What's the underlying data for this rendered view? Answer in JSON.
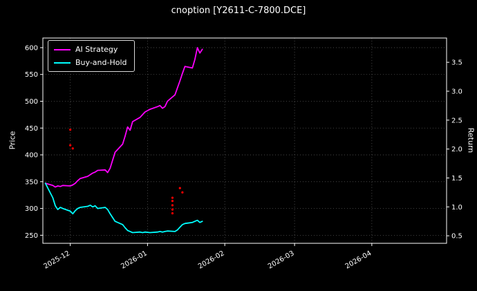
{
  "window": {
    "title": "cnoption [Y2611-C-7800.DCE]"
  },
  "chart_data": {
    "type": "line",
    "title": "cnoption [Y2611-C-7800.DCE]",
    "ylabel_left": "Price",
    "ylabel_right": "Return",
    "background_color": "#000000",
    "text_color": "#ffffff",
    "grid_color": "#555555",
    "spine_color": "#ffffff",
    "grid": "on",
    "legend_position": "upper-left",
    "xlim": [
      "2025-11-20",
      "2026-05-01"
    ],
    "ylim_left": [
      235,
      618
    ],
    "ylim_right": [
      0.37,
      3.92
    ],
    "yticks_left": [
      "250",
      "300",
      "350",
      "400",
      "450",
      "500",
      "550",
      "600"
    ],
    "yticks_left_values": [
      250,
      300,
      350,
      400,
      450,
      500,
      550,
      600
    ],
    "yticks_right": [
      "0.5",
      "1.0",
      "1.5",
      "2.0",
      "2.5",
      "3.0",
      "3.5"
    ],
    "yticks_right_values": [
      0.5,
      1.0,
      1.5,
      2.0,
      2.5,
      3.0,
      3.5
    ],
    "xticks": [
      {
        "date": "2025-12-01",
        "label": "2025-12"
      },
      {
        "date": "2026-01-01",
        "label": "2026-01"
      },
      {
        "date": "2026-02-01",
        "label": "2026-02"
      },
      {
        "date": "2026-03-01",
        "label": "2026-03"
      },
      {
        "date": "2026-04-01",
        "label": "2026-04"
      }
    ],
    "series": [
      {
        "name": "AI Strategy",
        "color": "#ff00ff",
        "points": [
          [
            "2025-11-21",
            347
          ],
          [
            "2025-11-24",
            343
          ],
          [
            "2025-11-25",
            340
          ],
          [
            "2025-11-26",
            342
          ],
          [
            "2025-11-27",
            341
          ],
          [
            "2025-11-28",
            343
          ],
          [
            "2025-12-01",
            342
          ],
          [
            "2025-12-02",
            344
          ],
          [
            "2025-12-03",
            347
          ],
          [
            "2025-12-04",
            352
          ],
          [
            "2025-12-05",
            356
          ],
          [
            "2025-12-08",
            360
          ],
          [
            "2025-12-09",
            363
          ],
          [
            "2025-12-10",
            366
          ],
          [
            "2025-12-11",
            368
          ],
          [
            "2025-12-12",
            371
          ],
          [
            "2025-12-15",
            372
          ],
          [
            "2025-12-16",
            367
          ],
          [
            "2025-12-17",
            375
          ],
          [
            "2025-12-18",
            390
          ],
          [
            "2025-12-19",
            405
          ],
          [
            "2025-12-22",
            420
          ],
          [
            "2025-12-23",
            435
          ],
          [
            "2025-12-24",
            452
          ],
          [
            "2025-12-25",
            446
          ],
          [
            "2025-12-26",
            462
          ],
          [
            "2025-12-29",
            470
          ],
          [
            "2025-12-30",
            475
          ],
          [
            "2025-12-31",
            480
          ],
          [
            "2026-01-02",
            485
          ],
          [
            "2026-01-05",
            490
          ],
          [
            "2026-01-06",
            492
          ],
          [
            "2026-01-07",
            487
          ],
          [
            "2026-01-08",
            490
          ],
          [
            "2026-01-09",
            500
          ],
          [
            "2026-01-12",
            512
          ],
          [
            "2026-01-13",
            525
          ],
          [
            "2026-01-14",
            538
          ],
          [
            "2026-01-15",
            552
          ],
          [
            "2026-01-16",
            565
          ],
          [
            "2026-01-19",
            562
          ],
          [
            "2026-01-20",
            578
          ],
          [
            "2026-01-21",
            600
          ],
          [
            "2026-01-22",
            590
          ],
          [
            "2026-01-23",
            597
          ]
        ]
      },
      {
        "name": "Buy-and-Hold",
        "color": "#00ffff",
        "points": [
          [
            "2025-11-21",
            347
          ],
          [
            "2025-11-24",
            320
          ],
          [
            "2025-11-25",
            305
          ],
          [
            "2025-11-26",
            298
          ],
          [
            "2025-11-27",
            302
          ],
          [
            "2025-11-28",
            300
          ],
          [
            "2025-12-01",
            295
          ],
          [
            "2025-12-02",
            290
          ],
          [
            "2025-12-03",
            296
          ],
          [
            "2025-12-04",
            300
          ],
          [
            "2025-12-05",
            302
          ],
          [
            "2025-12-08",
            304
          ],
          [
            "2025-12-09",
            306
          ],
          [
            "2025-12-10",
            303
          ],
          [
            "2025-12-11",
            305
          ],
          [
            "2025-12-12",
            300
          ],
          [
            "2025-12-15",
            302
          ],
          [
            "2025-12-16",
            298
          ],
          [
            "2025-12-17",
            290
          ],
          [
            "2025-12-18",
            283
          ],
          [
            "2025-12-19",
            276
          ],
          [
            "2025-12-22",
            270
          ],
          [
            "2025-12-23",
            264
          ],
          [
            "2025-12-24",
            259
          ],
          [
            "2025-12-25",
            257
          ],
          [
            "2025-12-26",
            255
          ],
          [
            "2025-12-29",
            256
          ],
          [
            "2025-12-30",
            255
          ],
          [
            "2025-12-31",
            256
          ],
          [
            "2026-01-02",
            255
          ],
          [
            "2026-01-05",
            256
          ],
          [
            "2026-01-06",
            257
          ],
          [
            "2026-01-07",
            256
          ],
          [
            "2026-01-08",
            257
          ],
          [
            "2026-01-09",
            258
          ],
          [
            "2026-01-12",
            257
          ],
          [
            "2026-01-13",
            260
          ],
          [
            "2026-01-14",
            265
          ],
          [
            "2026-01-15",
            270
          ],
          [
            "2026-01-16",
            272
          ],
          [
            "2026-01-19",
            274
          ],
          [
            "2026-01-20",
            276
          ],
          [
            "2026-01-21",
            278
          ],
          [
            "2026-01-22",
            274
          ],
          [
            "2026-01-23",
            276
          ]
        ]
      }
    ],
    "markers": {
      "name": "trade-signals",
      "color": "#ff0000",
      "points": [
        [
          "2025-12-01",
          447
        ],
        [
          "2025-12-01",
          418
        ],
        [
          "2025-12-02",
          412
        ],
        [
          "2026-01-11",
          291
        ],
        [
          "2026-01-11",
          298
        ],
        [
          "2026-01-11",
          306
        ],
        [
          "2026-01-11",
          314
        ],
        [
          "2026-01-11",
          320
        ],
        [
          "2026-01-14",
          338
        ],
        [
          "2026-01-15",
          330
        ]
      ]
    }
  }
}
